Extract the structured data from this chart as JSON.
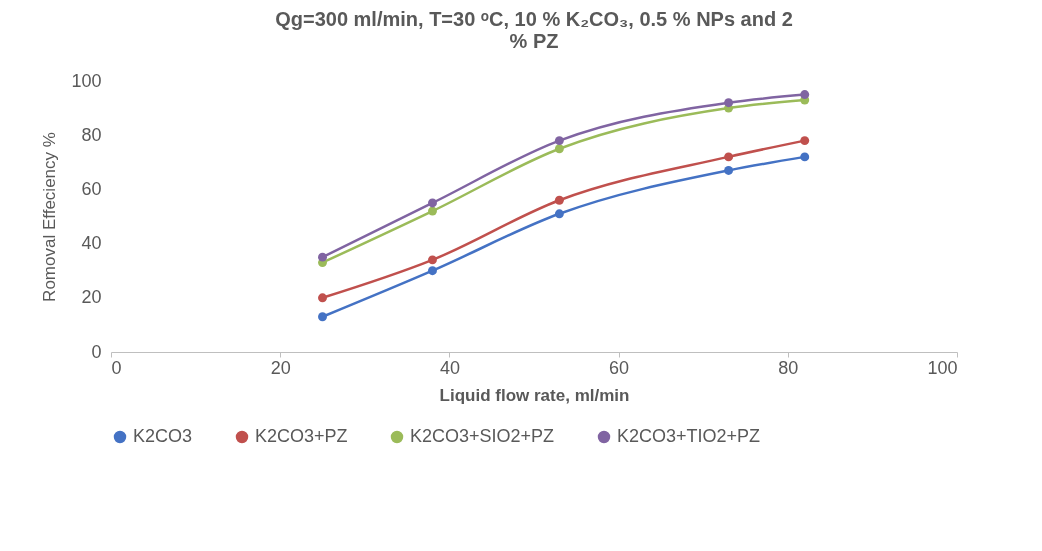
{
  "chart_data": {
    "type": "line",
    "title": "Qg=300 ml/min, T=30 ᵒC, 10 % K₂CO₃, 0.5 % NPs and 2 % PZ",
    "xlabel": "Liquid flow rate, ml/min",
    "ylabel": "Romoval Effeciency %",
    "x": [
      25,
      38,
      53,
      73,
      82
    ],
    "series": [
      {
        "name": "K2CO3",
        "color": "#4472c4",
        "values": [
          13,
          30,
          51,
          67,
          72
        ]
      },
      {
        "name": "K2CO3+PZ",
        "color": "#c0504d",
        "values": [
          20,
          34,
          56,
          72,
          78
        ]
      },
      {
        "name": "K2CO3+SIO2+PZ",
        "color": "#9bbb59",
        "values": [
          33,
          52,
          75,
          90,
          93
        ]
      },
      {
        "name": "K2CO3+TIO2+PZ",
        "color": "#8064a2",
        "values": [
          35,
          55,
          78,
          92,
          95
        ]
      }
    ],
    "xlim": [
      0,
      100
    ],
    "xticks": [
      0,
      20,
      40,
      60,
      80,
      100
    ],
    "ylim": [
      0,
      100
    ],
    "yticks": [
      0,
      20,
      40,
      60,
      80,
      100
    ],
    "grid": false,
    "legend": "bottom",
    "marker": "circle",
    "line_style": "solid"
  }
}
